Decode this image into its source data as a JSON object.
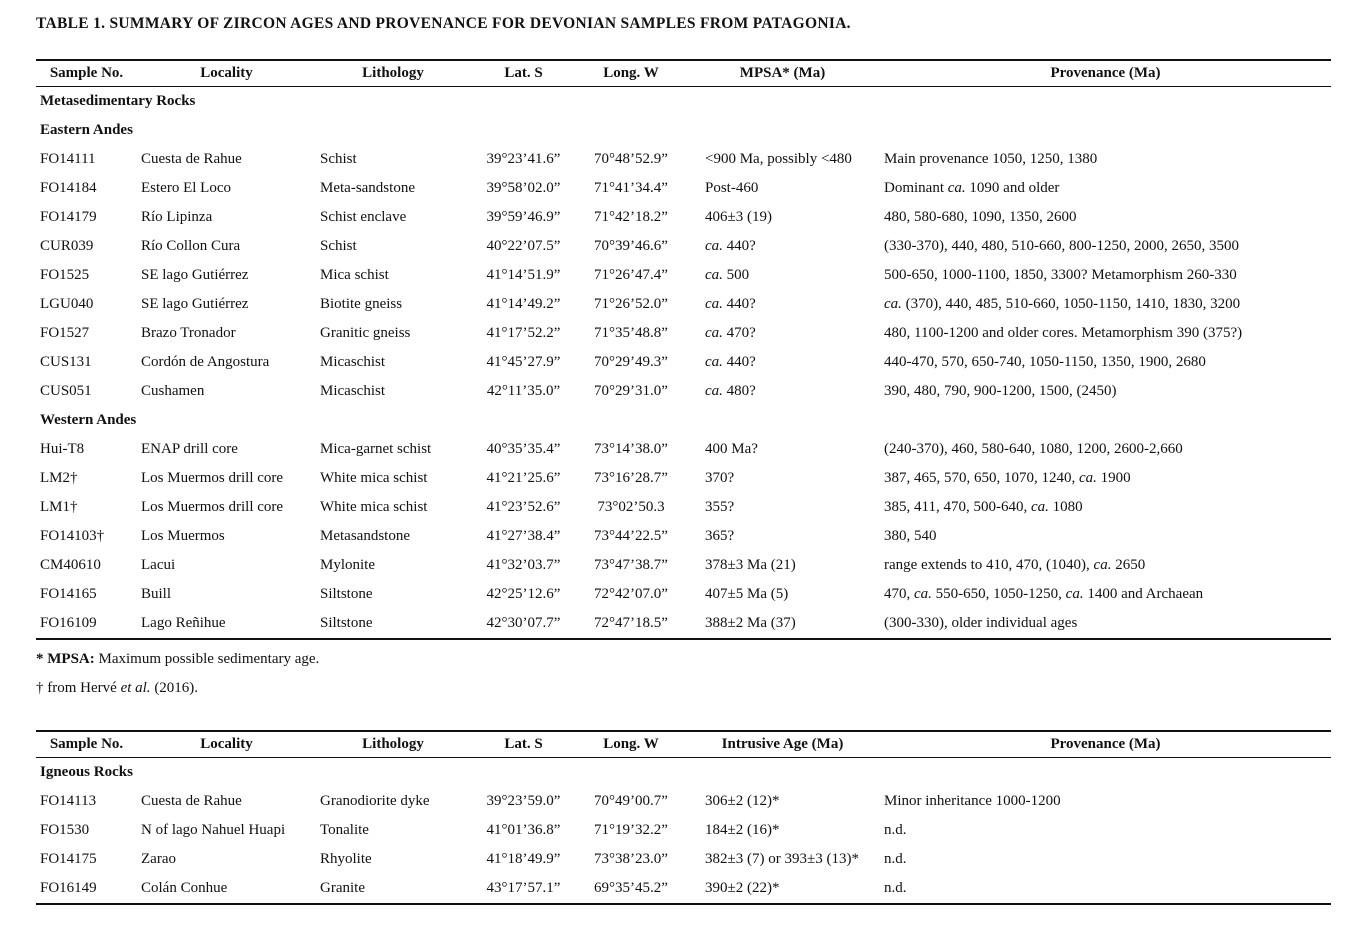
{
  "title": "TABLE 1. SUMMARY OF ZIRCON AGES AND PROVENANCE FOR DEVONIAN SAMPLES FROM PATAGONIA.",
  "tables": [
    {
      "id": "metasedimentary-rocks",
      "headers": [
        "Sample No.",
        "Locality",
        "Lithology",
        "Lat. S",
        "Long. W",
        "MPSA* (Ma)",
        "Provenance (Ma)"
      ],
      "sections": [
        {
          "label": "Metasedimentary Rocks",
          "rows": []
        },
        {
          "label": "Eastern Andes",
          "rows": [
            [
              "FO14111",
              "Cuesta de Rahue",
              "Schist",
              "39°23’41.6”",
              "70°48’52.9”",
              "&lt;900 Ma, possibly &lt;480",
              "Main provenance 1050, 1250, 1380"
            ],
            [
              "FO14184",
              "Estero El Loco",
              "Meta-sandstone",
              "39°58’02.0”",
              "71°41’34.4”",
              "Post-460",
              "Dominant <i>ca.</i> 1090 and older"
            ],
            [
              "FO14179",
              "Río Lipinza",
              "Schist enclave",
              "39°59’46.9”",
              "71°42’18.2”",
              "406±3 (19)",
              "480, 580-680, 1090, 1350, 2600"
            ],
            [
              "CUR039",
              "Río Collon Cura",
              "Schist",
              "40°22’07.5”",
              "70°39’46.6”",
              "<i>ca.</i> 440?",
              "(330-370), 440, 480, 510-660, 800-1250, 2000, 2650, 3500"
            ],
            [
              "FO1525",
              "SE lago Gutiérrez",
              "Mica schist",
              "41°14’51.9”",
              "71°26’47.4”",
              "<i>ca.</i> 500",
              "500-650, 1000-1100, 1850, 3300? Metamorphism 260-330"
            ],
            [
              "LGU040",
              "SE lago Gutiérrez",
              "Biotite gneiss",
              "41°14’49.2”",
              "71°26’52.0”",
              "<i>ca.</i> 440?",
              "<i>ca.</i> (370), 440, 485, 510-660, 1050-1150, 1410, 1830, 3200"
            ],
            [
              "FO1527",
              "Brazo Tronador",
              "Granitic gneiss",
              "41°17’52.2”",
              "71°35’48.8”",
              "<i>ca.</i> 470?",
              "480, 1100-1200 and older cores. Metamorphism 390 (375?)"
            ],
            [
              "CUS131",
              "Cordón de Angostura",
              "Micaschist",
              "41°45’27.9”",
              "70°29’49.3”",
              "<i>ca.</i> 440?",
              "440-470, 570, 650-740, 1050-1150, 1350, 1900, 2680"
            ],
            [
              "CUS051",
              "Cushamen",
              "Micaschist",
              "42°11’35.0”",
              "70°29’31.0”",
              "<i>ca.</i> 480?",
              "390, 480, 790, 900-1200, 1500, (2450)"
            ]
          ]
        },
        {
          "label": "Western Andes",
          "rows": [
            [
              "Hui-T8",
              "ENAP drill core",
              "Mica-garnet schist",
              "40°35’35.4”",
              "73°14’38.0”",
              "400 Ma?",
              "(240-370), 460, 580-640, 1080, 1200, 2600-2,660"
            ],
            [
              "LM2†",
              "Los Muermos drill core",
              "White mica schist",
              "41°21’25.6”",
              "73°16’28.7”",
              "370?",
              "387, 465, 570, 650, 1070, 1240, <i>ca.</i> 1900"
            ],
            [
              "LM1†",
              "Los Muermos drill core",
              "White mica schist",
              "41°23’52.6”",
              "73°02’50.3",
              "355?",
              "385, 411, 470, 500-640, <i>ca.</i> 1080"
            ],
            [
              "FO14103†",
              "Los Muermos",
              "Metasandstone",
              "41°27’38.4”",
              "73°44’22.5”",
              "365?",
              "380, 540"
            ],
            [
              "CM40610",
              "Lacui",
              "Mylonite",
              "41°32’03.7”",
              "73°47’38.7”",
              "378±3 Ma (21)",
              "range extends to 410, 470, (1040), <i>ca.</i> 2650"
            ],
            [
              "FO14165",
              "Buill",
              "Siltstone",
              "42°25’12.6”",
              "72°42’07.0”",
              "407±5 Ma (5)",
              "470, <i>ca.</i> 550-650, 1050-1250, <i>ca.</i> 1400 and Archaean"
            ],
            [
              "FO16109",
              "Lago Reñihue",
              "Siltstone",
              "42°30’07.7”",
              "72°47’18.5”",
              "388±2 Ma (37)",
              "(300-330), older individual ages"
            ]
          ]
        }
      ],
      "footnotes": [
        "<b>* MPSA:</b> Maximum possible sedimentary age.",
        "† from Hervé <i>et al.</i> (2016)."
      ]
    },
    {
      "id": "igneous-rocks",
      "headers": [
        "Sample No.",
        "Locality",
        "Lithology",
        "Lat. S",
        "Long. W",
        "Intrusive Age (Ma)",
        "Provenance (Ma)"
      ],
      "sections": [
        {
          "label": "Igneous Rocks",
          "rows": [
            [
              "FO14113",
              "Cuesta de Rahue",
              "Granodiorite dyke",
              "39°23’59.0”",
              "70°49’00.7”",
              "306±2 (12)*",
              "Minor inheritance 1000-1200"
            ],
            [
              "FO1530",
              "N of lago Nahuel Huapi",
              "Tonalite",
              "41°01’36.8”",
              "71°19’32.2”",
              "184±2 (16)*",
              "n.d."
            ],
            [
              "FO14175",
              "Zarao",
              "Rhyolite",
              "41°18’49.9”",
              "73°38’23.0”",
              "382±3 (7) or 393±3 (13)*",
              "n.d."
            ],
            [
              "FO16149",
              "Colán Conhue",
              "Granite",
              "43°17’57.1”",
              "69°35’45.2”",
              "390±2 (22)*",
              "n.d."
            ]
          ]
        }
      ],
      "footnotes": []
    }
  ]
}
